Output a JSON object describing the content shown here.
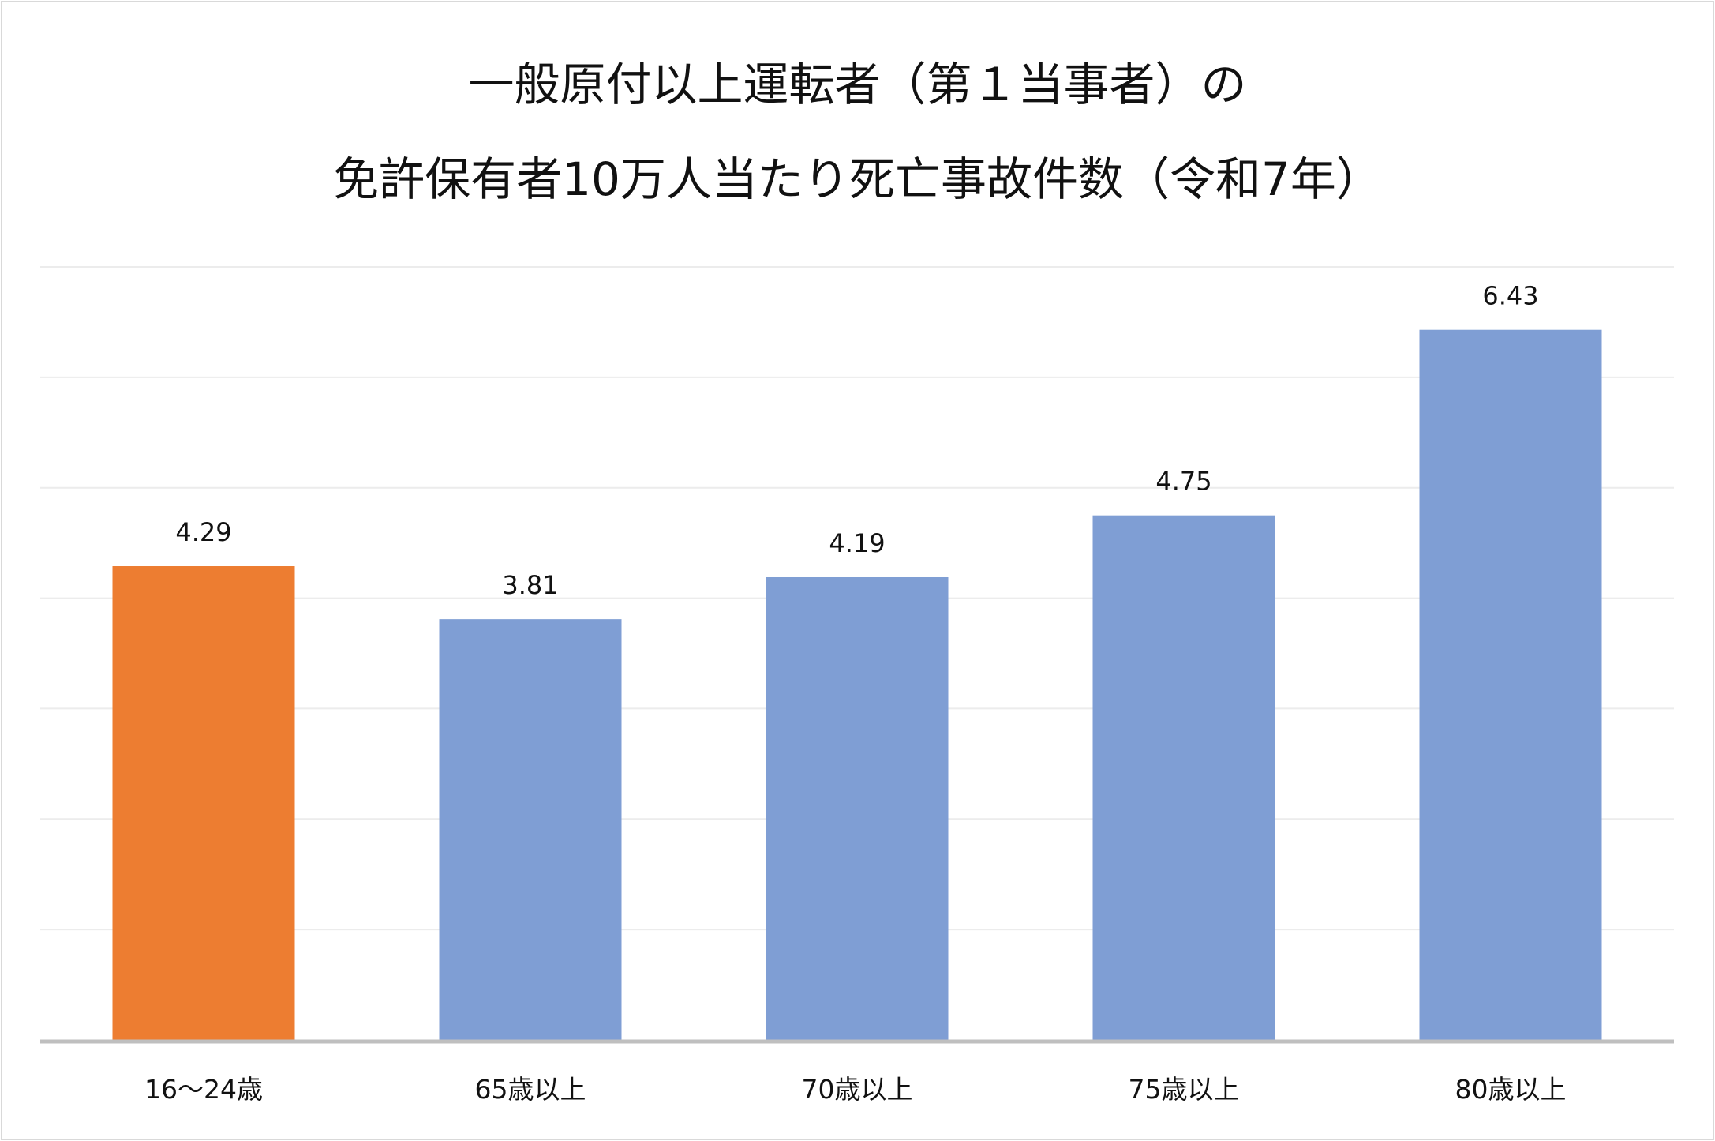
{
  "chart_data": {
    "type": "bar",
    "title": [
      "一般原付以上運転者（第１当事者）の",
      "免許保有者10万人当たり死亡事故件数（令和7年）"
    ],
    "categories": [
      "16〜24歳",
      "65歳以上",
      "70歳以上",
      "75歳以上",
      "80歳以上"
    ],
    "values": [
      4.29,
      3.81,
      4.19,
      4.75,
      6.43
    ],
    "data_labels": [
      "4.29",
      "3.81",
      "4.19",
      "4.75",
      "6.43"
    ],
    "bar_colors": [
      "#ED7D31",
      "#7F9ED4",
      "#7F9ED4",
      "#7F9ED4",
      "#7F9ED4"
    ],
    "xlabel": "",
    "ylabel": "",
    "ylim": [
      0,
      7
    ],
    "y_gridline_step": 1,
    "y_tick_labels_shown": false,
    "grid": true,
    "legend": "none"
  }
}
